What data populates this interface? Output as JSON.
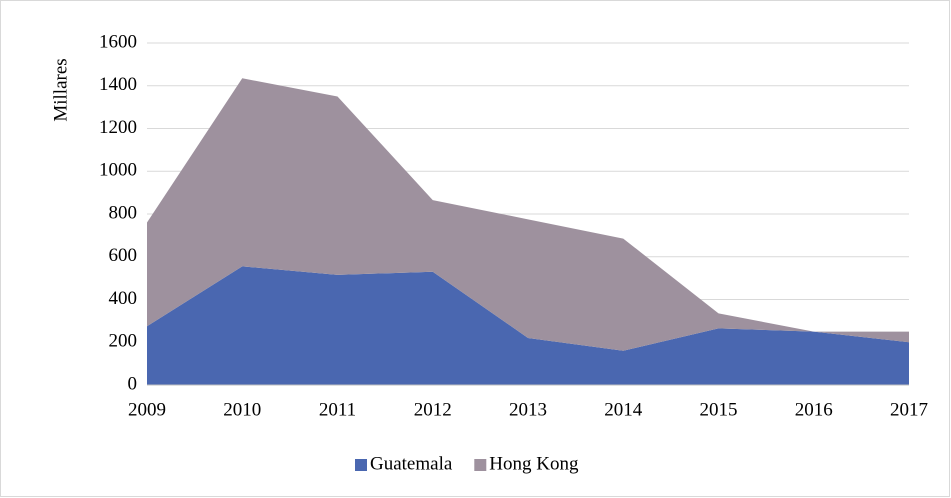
{
  "chart_data": {
    "type": "stacked_area",
    "y_label": "Millares",
    "categories": [
      "2009",
      "2010",
      "2011",
      "2012",
      "2013",
      "2014",
      "2015",
      "2016",
      "2017"
    ],
    "series": [
      {
        "name": "Guatemala",
        "color": "#4a67b0",
        "values": [
          275,
          555,
          515,
          530,
          220,
          160,
          265,
          250,
          200
        ]
      },
      {
        "name": "Hong Kong",
        "color": "#9e919e",
        "values": [
          485,
          880,
          835,
          335,
          555,
          525,
          70,
          0,
          50
        ]
      }
    ],
    "ylim": [
      0,
      1600
    ],
    "yticks": [
      0,
      200,
      400,
      600,
      800,
      1000,
      1200,
      1400,
      1600
    ],
    "grid": true,
    "legend": "bottom"
  }
}
